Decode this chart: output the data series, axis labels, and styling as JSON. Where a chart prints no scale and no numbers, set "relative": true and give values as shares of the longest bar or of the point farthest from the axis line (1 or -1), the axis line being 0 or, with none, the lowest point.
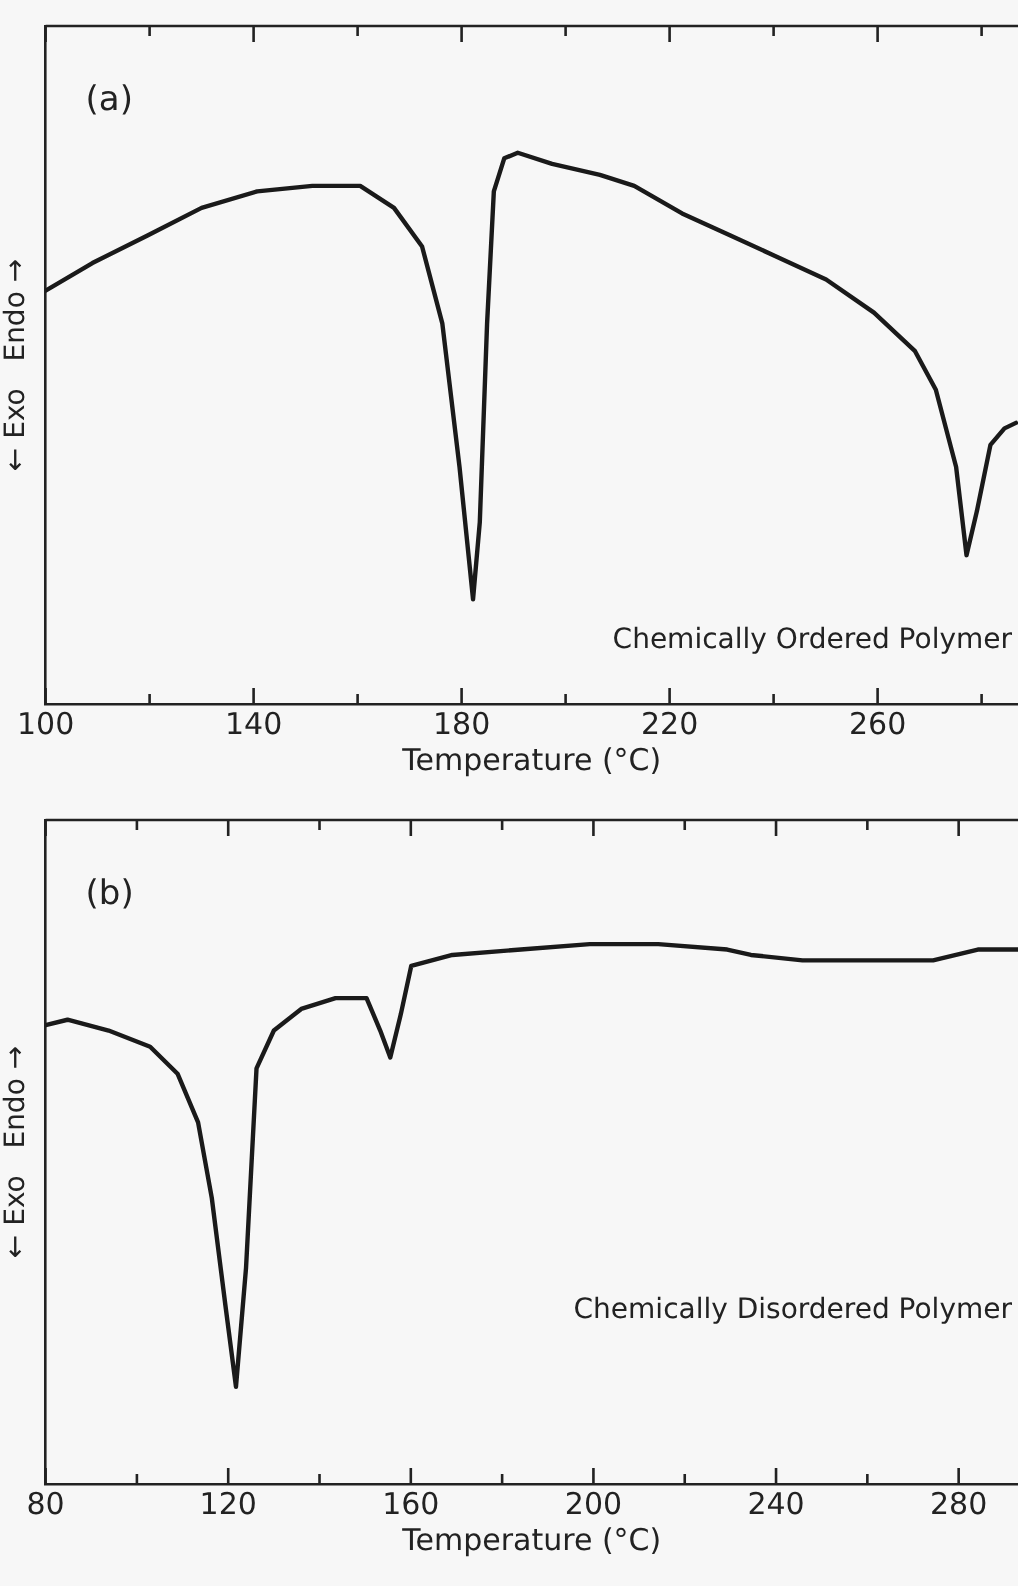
{
  "chart_data": [
    {
      "type": "line",
      "relative": true,
      "xlabel": "Temperature (°C)",
      "ylabel": "← Exo   Endo →",
      "annotations": [
        "(a)",
        "Chemically Ordered Polymer"
      ],
      "xlim": [
        100,
        287
      ],
      "xticks": [
        100,
        {
          "value": 120,
          "label": null
        },
        140,
        {
          "value": 160,
          "label": null
        },
        180,
        {
          "value": 200,
          "label": null
        },
        220,
        {
          "value": 240,
          "label": null
        },
        260,
        {
          "value": 280,
          "label": null
        }
      ],
      "grid": false,
      "legend": false,
      "marker": "none",
      "line_style": "solid",
      "series": [
        {
          "color": "#1a1a1a",
          "x": [
            100,
            109,
            119.6,
            130,
            140.7,
            151.3,
            160.5,
            167,
            172.4,
            176.3,
            179.6,
            182.2,
            183.5,
            184.9,
            186.2,
            188.2,
            190.8,
            197.4,
            206.6,
            213.2,
            222.4,
            231.7,
            240.9,
            250.1,
            259.3,
            267.2,
            271.2,
            275.1,
            277.1,
            279.1,
            281.7,
            284.4,
            286.6
          ],
          "values": [
            0.75,
            0.8,
            0.85,
            0.9,
            0.93,
            0.94,
            0.94,
            0.9,
            0.83,
            0.69,
            0.43,
            0.19,
            0.33,
            0.69,
            0.93,
            0.99,
            1,
            0.98,
            0.96,
            0.94,
            0.89,
            0.85,
            0.81,
            0.77,
            0.71,
            0.64,
            0.57,
            0.43,
            0.27,
            0.35,
            0.47,
            0.5,
            0.51
          ]
        }
      ]
    },
    {
      "type": "line",
      "relative": true,
      "xlabel": "Temperature (°C)",
      "ylabel": "← Exo   Endo →",
      "annotations": [
        "(b)",
        "Chemically Disordered Polymer"
      ],
      "xlim": [
        80,
        293
      ],
      "xticks": [
        80,
        {
          "value": 100,
          "label": null
        },
        120,
        {
          "value": 140,
          "label": null
        },
        160,
        {
          "value": 180,
          "label": null
        },
        200,
        {
          "value": 220,
          "label": null
        },
        240,
        {
          "value": 260,
          "label": null
        },
        280
      ],
      "grid": false,
      "legend": false,
      "marker": "none",
      "line_style": "solid",
      "series": [
        {
          "color": "#1a1a1a",
          "x": [
            80,
            84.8,
            93.8,
            102.9,
            108.9,
            113.4,
            116.4,
            119.4,
            121.7,
            123.9,
            126.2,
            130,
            136,
            143.5,
            150.3,
            153.3,
            155.5,
            157.8,
            160.1,
            169.1,
            184.1,
            199.2,
            214.2,
            229.3,
            234.5,
            245.8,
            259.4,
            274.4,
            284.2,
            293
          ],
          "values": [
            0.85,
            0.86,
            0.84,
            0.81,
            0.76,
            0.67,
            0.53,
            0.33,
            0.18,
            0.4,
            0.77,
            0.84,
            0.88,
            0.9,
            0.9,
            0.84,
            0.79,
            0.87,
            0.96,
            0.98,
            0.99,
            1,
            1,
            0.99,
            0.98,
            0.97,
            0.97,
            0.97,
            0.99,
            0.99
          ]
        }
      ]
    }
  ]
}
